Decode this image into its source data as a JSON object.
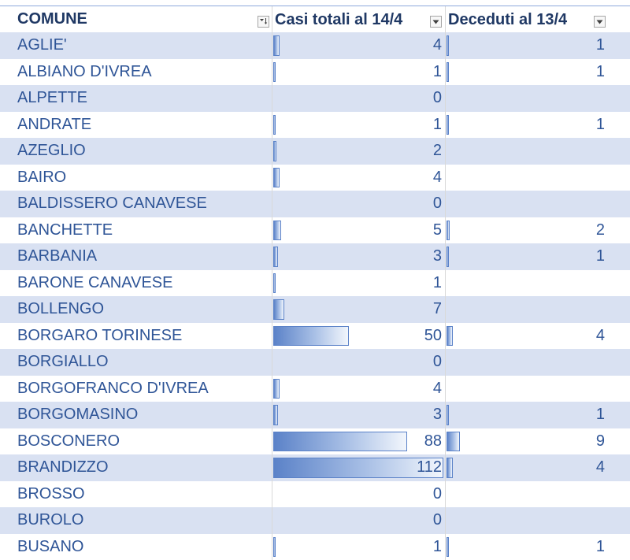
{
  "sheet": {
    "headers": {
      "comune": "COMUNE",
      "casi": "Casi totali al 14/4",
      "deceduti": "Deceduti al 13/4"
    },
    "filter_icons": {
      "comune": "filter-sort-icon",
      "casi": "dropdown-arrow-icon",
      "deceduti": "dropdown-arrow-icon"
    },
    "data_bar_max": {
      "casi": 112,
      "deceduti": 9
    },
    "colors": {
      "band": "#d9e1f2",
      "text": "#2f5597",
      "header": "#1f3864",
      "bar": "#5b82c8"
    },
    "rows": [
      {
        "comune": "AGLIE'",
        "casi": "4",
        "deceduti": "1"
      },
      {
        "comune": "ALBIANO D'IVREA",
        "casi": "1",
        "deceduti": "1"
      },
      {
        "comune": "ALPETTE",
        "casi": "0",
        "deceduti": ""
      },
      {
        "comune": "ANDRATE",
        "casi": "1",
        "deceduti": "1"
      },
      {
        "comune": "AZEGLIO",
        "casi": "2",
        "deceduti": ""
      },
      {
        "comune": "BAIRO",
        "casi": "4",
        "deceduti": ""
      },
      {
        "comune": "BALDISSERO CANAVESE",
        "casi": "0",
        "deceduti": ""
      },
      {
        "comune": "BANCHETTE",
        "casi": "5",
        "deceduti": "2"
      },
      {
        "comune": "BARBANIA",
        "casi": "3",
        "deceduti": "1"
      },
      {
        "comune": "BARONE CANAVESE",
        "casi": "1",
        "deceduti": ""
      },
      {
        "comune": "BOLLENGO",
        "casi": "7",
        "deceduti": ""
      },
      {
        "comune": "BORGARO TORINESE",
        "casi": "50",
        "deceduti": "4"
      },
      {
        "comune": "BORGIALLO",
        "casi": "0",
        "deceduti": ""
      },
      {
        "comune": "BORGOFRANCO D'IVREA",
        "casi": "4",
        "deceduti": ""
      },
      {
        "comune": "BORGOMASINO",
        "casi": "3",
        "deceduti": "1"
      },
      {
        "comune": "BOSCONERO",
        "casi": "88",
        "deceduti": "9"
      },
      {
        "comune": "BRANDIZZO",
        "casi": "112",
        "deceduti": "4"
      },
      {
        "comune": "BROSSO",
        "casi": "0",
        "deceduti": ""
      },
      {
        "comune": "BUROLO",
        "casi": "0",
        "deceduti": ""
      },
      {
        "comune": "BUSANO",
        "casi": "1",
        "deceduti": "1"
      }
    ]
  }
}
